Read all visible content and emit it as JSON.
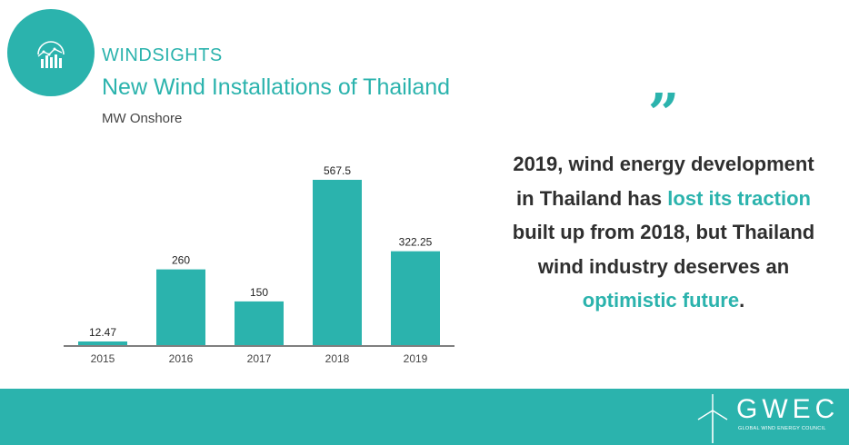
{
  "header": {
    "brand": "WINDSIGHTS",
    "title": "New Wind Installations of Thailand",
    "subtitle": "MW Onshore",
    "logo_icon": "chart-trend-icon"
  },
  "chart_data": {
    "type": "bar",
    "title": "New Wind Installations of Thailand",
    "ylabel": "MW Onshore",
    "categories": [
      "2015",
      "2016",
      "2017",
      "2018",
      "2019"
    ],
    "values": [
      12.47,
      260,
      150,
      567.5,
      322.25
    ],
    "value_labels": [
      "12.47",
      "260",
      "150",
      "567.5",
      "322.25"
    ],
    "ylim": [
      0,
      567.5
    ],
    "grid": false,
    "bar_color": "#2bb3ad"
  },
  "quote": {
    "mark": "”",
    "part1": "2019, wind energy development in Thailand has ",
    "highlight1": "lost its traction",
    "part2": " built up from 2018, but Thailand wind industry deserves an ",
    "highlight2": "optimistic future",
    "part3": "."
  },
  "footer": {
    "logo_text": "GWEC",
    "logo_subtext": "GLOBAL WIND ENERGY COUNCIL",
    "logo_icon": "wind-turbine-icon"
  },
  "colors": {
    "accent": "#2bb3ad",
    "text": "#2f2f2f"
  }
}
